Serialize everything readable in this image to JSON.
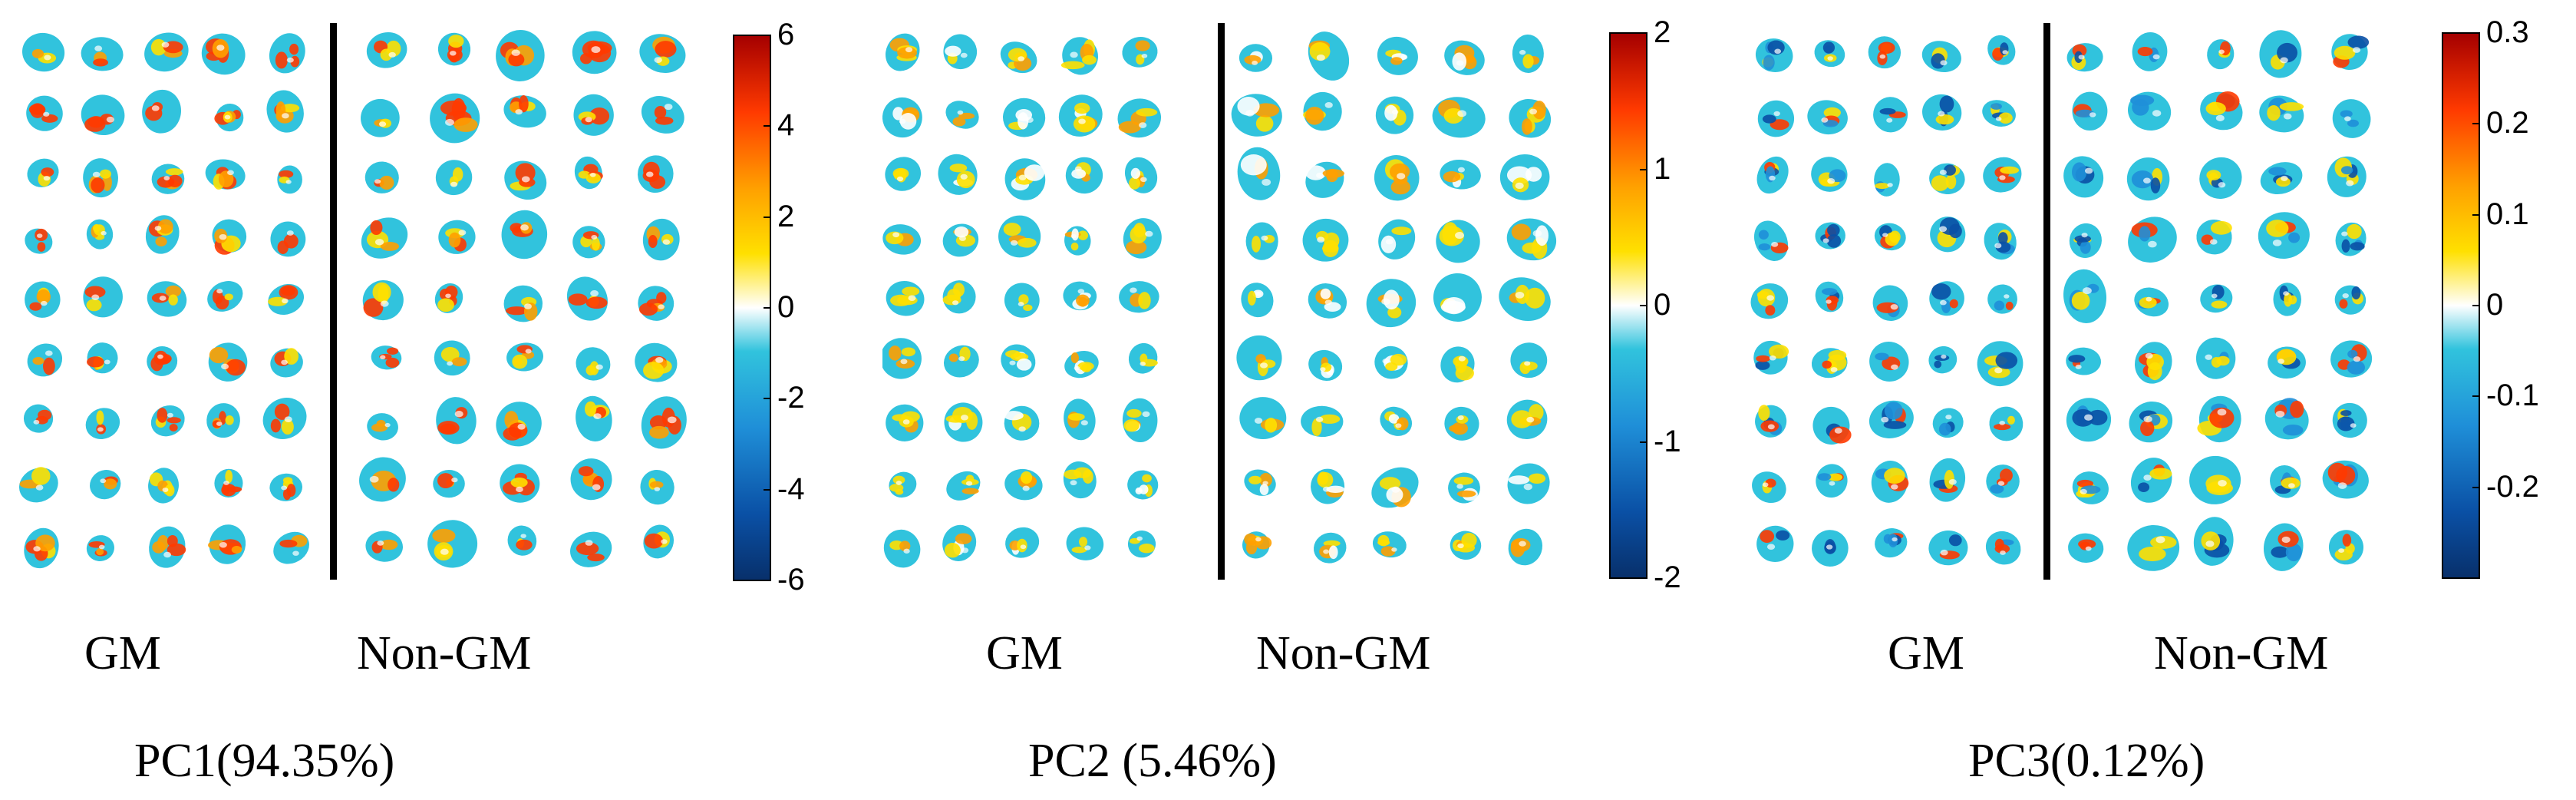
{
  "figure": {
    "colormap": [
      "#08306b",
      "#0a50a5",
      "#1f8fd8",
      "#31c3dd",
      "#ffffff",
      "#ffe000",
      "#ffa000",
      "#ff3a00",
      "#a50000"
    ],
    "panels": [
      {
        "title": "PC1(94.35%)",
        "gm_label": "GM",
        "non_gm_label": "Non-GM",
        "colorbar_ticks": [
          "6",
          "4",
          "2",
          "0",
          "-2",
          "-4",
          "-6"
        ],
        "intensity": "high"
      },
      {
        "title": "PC2 (5.46%)",
        "gm_label": "GM",
        "non_gm_label": "Non-GM",
        "colorbar_ticks": [
          "2",
          "1",
          "0",
          "-1",
          "-2"
        ],
        "intensity": "medium"
      },
      {
        "title": "PC3(0.12%)",
        "gm_label": "GM",
        "non_gm_label": "Non-GM",
        "colorbar_ticks": [
          "0.3",
          "0.2",
          "0.1",
          "0",
          "-0.1",
          "-0.2"
        ],
        "intensity": "mixed"
      }
    ]
  }
}
